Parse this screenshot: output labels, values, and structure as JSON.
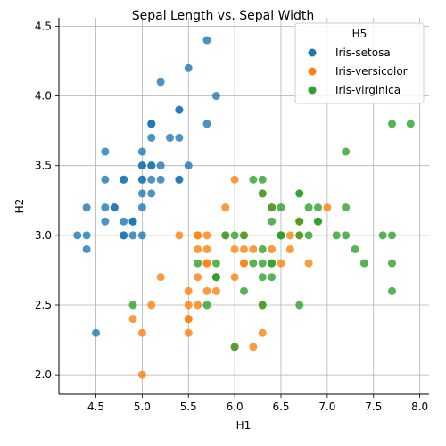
{
  "chart_data": {
    "type": "scatter",
    "title": "Sepal Length vs. Sepal Width",
    "xlabel": "H1",
    "ylabel": "H2",
    "xlim": [
      4.1,
      8.1
    ],
    "ylim": [
      1.86,
      4.56
    ],
    "x_ticks": [
      "4.5",
      "5.0",
      "5.5",
      "6.0",
      "6.5",
      "7.0",
      "7.5",
      "8.0"
    ],
    "y_ticks": [
      "2.0",
      "2.5",
      "3.0",
      "3.5",
      "4.0",
      "4.5"
    ],
    "grid": true,
    "legend": {
      "title": "H5",
      "placement": "top-right"
    },
    "series": [
      {
        "name": "Iris-setosa",
        "color": "#1f77b4",
        "points": [
          [
            5.1,
            3.5
          ],
          [
            4.9,
            3.0
          ],
          [
            4.7,
            3.2
          ],
          [
            4.6,
            3.1
          ],
          [
            5.0,
            3.6
          ],
          [
            5.4,
            3.9
          ],
          [
            4.6,
            3.4
          ],
          [
            5.0,
            3.4
          ],
          [
            4.4,
            2.9
          ],
          [
            4.9,
            3.1
          ],
          [
            5.4,
            3.7
          ],
          [
            4.8,
            3.4
          ],
          [
            4.8,
            3.0
          ],
          [
            4.3,
            3.0
          ],
          [
            5.8,
            4.0
          ],
          [
            5.7,
            4.4
          ],
          [
            5.4,
            3.9
          ],
          [
            5.1,
            3.5
          ],
          [
            5.7,
            3.8
          ],
          [
            5.1,
            3.8
          ],
          [
            5.4,
            3.4
          ],
          [
            5.1,
            3.7
          ],
          [
            4.6,
            3.6
          ],
          [
            5.1,
            3.3
          ],
          [
            4.8,
            3.4
          ],
          [
            5.0,
            3.0
          ],
          [
            5.0,
            3.4
          ],
          [
            5.2,
            3.5
          ],
          [
            5.2,
            3.4
          ],
          [
            4.7,
            3.2
          ],
          [
            4.8,
            3.1
          ],
          [
            5.4,
            3.4
          ],
          [
            5.2,
            4.1
          ],
          [
            5.5,
            4.2
          ],
          [
            4.9,
            3.1
          ],
          [
            5.0,
            3.2
          ],
          [
            5.5,
            3.5
          ],
          [
            4.9,
            3.1
          ],
          [
            4.4,
            3.0
          ],
          [
            5.1,
            3.4
          ],
          [
            5.0,
            3.5
          ],
          [
            4.5,
            2.3
          ],
          [
            4.4,
            3.2
          ],
          [
            5.0,
            3.5
          ],
          [
            5.1,
            3.8
          ],
          [
            4.8,
            3.0
          ],
          [
            5.1,
            3.8
          ],
          [
            4.6,
            3.2
          ],
          [
            5.3,
            3.7
          ],
          [
            5.0,
            3.3
          ]
        ]
      },
      {
        "name": "Iris-versicolor",
        "color": "#ff7f0e",
        "points": [
          [
            7.0,
            3.2
          ],
          [
            6.4,
            3.2
          ],
          [
            6.9,
            3.1
          ],
          [
            5.5,
            2.3
          ],
          [
            6.5,
            2.8
          ],
          [
            5.7,
            2.8
          ],
          [
            6.3,
            3.3
          ],
          [
            4.9,
            2.4
          ],
          [
            6.6,
            2.9
          ],
          [
            5.2,
            2.7
          ],
          [
            5.0,
            2.0
          ],
          [
            5.9,
            3.0
          ],
          [
            6.0,
            2.2
          ],
          [
            6.1,
            2.9
          ],
          [
            5.6,
            2.9
          ],
          [
            6.7,
            3.1
          ],
          [
            5.6,
            3.0
          ],
          [
            5.8,
            2.7
          ],
          [
            6.2,
            2.2
          ],
          [
            5.6,
            2.5
          ],
          [
            5.9,
            3.2
          ],
          [
            6.1,
            2.8
          ],
          [
            6.3,
            2.5
          ],
          [
            6.1,
            2.8
          ],
          [
            6.4,
            2.9
          ],
          [
            6.6,
            3.0
          ],
          [
            6.8,
            2.8
          ],
          [
            6.7,
            3.0
          ],
          [
            6.0,
            2.9
          ],
          [
            5.7,
            2.6
          ],
          [
            5.5,
            2.4
          ],
          [
            5.5,
            2.4
          ],
          [
            5.8,
            2.7
          ],
          [
            6.0,
            2.7
          ],
          [
            5.4,
            3.0
          ],
          [
            6.0,
            3.4
          ],
          [
            6.7,
            3.1
          ],
          [
            6.3,
            2.3
          ],
          [
            5.6,
            3.0
          ],
          [
            5.5,
            2.5
          ],
          [
            5.5,
            2.6
          ],
          [
            6.1,
            3.0
          ],
          [
            5.8,
            2.6
          ],
          [
            5.0,
            2.3
          ],
          [
            5.6,
            2.7
          ],
          [
            5.7,
            3.0
          ],
          [
            5.7,
            2.9
          ],
          [
            6.2,
            2.9
          ],
          [
            5.1,
            2.5
          ],
          [
            5.7,
            2.8
          ]
        ]
      },
      {
        "name": "Iris-virginica",
        "color": "#2ca02c",
        "points": [
          [
            6.3,
            3.3
          ],
          [
            5.8,
            2.7
          ],
          [
            7.1,
            3.0
          ],
          [
            6.3,
            2.9
          ],
          [
            6.5,
            3.0
          ],
          [
            7.6,
            3.0
          ],
          [
            4.9,
            2.5
          ],
          [
            7.3,
            2.9
          ],
          [
            6.7,
            2.5
          ],
          [
            7.2,
            3.6
          ],
          [
            6.5,
            3.2
          ],
          [
            6.4,
            2.7
          ],
          [
            6.8,
            3.0
          ],
          [
            5.7,
            2.5
          ],
          [
            5.8,
            2.8
          ],
          [
            6.4,
            3.2
          ],
          [
            6.5,
            3.0
          ],
          [
            7.7,
            3.8
          ],
          [
            7.7,
            2.6
          ],
          [
            6.0,
            2.2
          ],
          [
            6.9,
            3.2
          ],
          [
            5.6,
            2.8
          ],
          [
            7.7,
            2.8
          ],
          [
            6.3,
            2.7
          ],
          [
            6.7,
            3.3
          ],
          [
            7.2,
            3.2
          ],
          [
            6.2,
            2.8
          ],
          [
            6.1,
            3.0
          ],
          [
            6.4,
            2.8
          ],
          [
            7.2,
            3.0
          ],
          [
            7.4,
            2.8
          ],
          [
            7.9,
            3.8
          ],
          [
            6.4,
            2.8
          ],
          [
            6.3,
            2.8
          ],
          [
            6.1,
            2.6
          ],
          [
            7.7,
            3.0
          ],
          [
            6.3,
            3.4
          ],
          [
            6.4,
            3.1
          ],
          [
            6.0,
            3.0
          ],
          [
            6.9,
            3.1
          ],
          [
            6.7,
            3.1
          ],
          [
            6.9,
            3.1
          ],
          [
            5.8,
            2.7
          ],
          [
            6.8,
            3.2
          ],
          [
            6.7,
            3.3
          ],
          [
            6.7,
            3.0
          ],
          [
            6.3,
            2.5
          ],
          [
            6.5,
            3.0
          ],
          [
            6.2,
            3.4
          ],
          [
            5.9,
            3.0
          ]
        ]
      }
    ]
  }
}
